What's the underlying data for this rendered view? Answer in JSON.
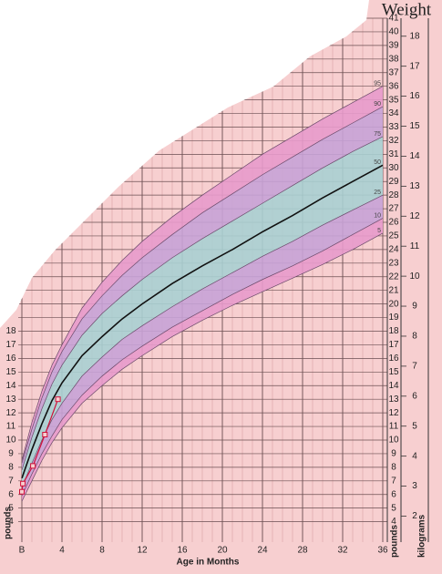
{
  "chart_data": {
    "type": "line",
    "title": "Weight",
    "x_label": "Age in Months",
    "y_label": "pounds",
    "y2_label": "kilograms",
    "xlim": [
      0,
      36
    ],
    "ylim": [
      2.5,
      41
    ],
    "y2lim": [
      1.134,
      18.6
    ],
    "xticks": [
      {
        "value": 0,
        "label": "B"
      },
      4,
      8,
      12,
      16,
      20,
      24,
      28,
      32,
      36
    ],
    "xgrid": [
      0,
      1,
      2,
      3,
      4,
      5,
      6,
      7,
      8,
      9,
      10,
      11,
      12,
      13,
      14,
      15,
      16,
      17,
      18,
      19,
      20,
      21,
      22,
      23,
      24,
      25,
      26,
      27,
      28,
      29,
      30,
      31,
      32,
      33,
      34,
      35,
      36
    ],
    "yticks": [
      4,
      5,
      6,
      7,
      8,
      9,
      10,
      11,
      12,
      13,
      14,
      15,
      16,
      17,
      18,
      19,
      20,
      21,
      22,
      23,
      24,
      25,
      26,
      27,
      28,
      29,
      30,
      31,
      32,
      33,
      34,
      35,
      36,
      37,
      38,
      39,
      40,
      41
    ],
    "yticks_left": [
      4,
      5,
      6,
      7,
      8,
      9,
      10,
      11,
      12,
      13,
      14,
      15,
      16,
      17,
      18
    ],
    "y2ticks": [
      2,
      3,
      4,
      5,
      6,
      7,
      8,
      9,
      10,
      11,
      12,
      13,
      14,
      15,
      16,
      17,
      18
    ],
    "grid": true,
    "x": [
      0,
      1,
      2,
      3,
      4,
      6,
      8,
      10,
      12,
      15,
      18,
      21,
      24,
      27,
      30,
      33,
      36
    ],
    "series": [
      {
        "name": "5",
        "color": "#6a4a6a",
        "values": [
          5.5,
          7.0,
          8.5,
          9.8,
          10.9,
          12.7,
          14.0,
          15.2,
          16.2,
          17.6,
          18.8,
          19.9,
          20.9,
          21.9,
          22.9,
          24.0,
          25.2
        ]
      },
      {
        "name": "10",
        "color": "#6a4a6a",
        "values": [
          5.9,
          7.5,
          9.0,
          10.3,
          11.5,
          13.3,
          14.7,
          15.9,
          16.9,
          18.3,
          19.5,
          20.7,
          21.8,
          22.8,
          23.9,
          25.1,
          26.3
        ]
      },
      {
        "name": "25",
        "color": "#6a4a6a",
        "values": [
          6.5,
          8.3,
          10.0,
          11.5,
          12.7,
          14.7,
          16.1,
          17.4,
          18.4,
          19.8,
          21.1,
          22.3,
          23.5,
          24.6,
          25.8,
          26.9,
          28.0
        ]
      },
      {
        "name": "50",
        "color": "#111111",
        "values": [
          7.2,
          9.3,
          11.2,
          12.9,
          14.2,
          16.2,
          17.6,
          18.9,
          20.0,
          21.5,
          22.8,
          24.0,
          25.3,
          26.5,
          27.8,
          29.0,
          30.2
        ]
      },
      {
        "name": "75",
        "color": "#6a4a6a",
        "values": [
          7.8,
          10.2,
          12.3,
          14.1,
          15.5,
          17.7,
          19.3,
          20.6,
          21.8,
          23.4,
          24.8,
          26.1,
          27.4,
          28.7,
          30.0,
          31.2,
          32.3
        ]
      },
      {
        "name": "90",
        "color": "#6a4a6a",
        "values": [
          8.3,
          10.8,
          13.1,
          15.0,
          16.5,
          18.9,
          20.6,
          22.1,
          23.4,
          25.1,
          26.7,
          28.1,
          29.5,
          30.8,
          32.1,
          33.3,
          34.5
        ]
      },
      {
        "name": "95",
        "color": "#6a4a6a",
        "values": [
          8.5,
          11.3,
          13.6,
          15.5,
          17.0,
          19.7,
          21.6,
          23.2,
          24.6,
          26.4,
          28.0,
          29.5,
          31.0,
          32.3,
          33.6,
          34.8,
          36.0
        ]
      }
    ],
    "band_colors": [
      "#e79acb",
      "#c7a2d6",
      "#a9cfd2",
      "#a9cfd2",
      "#c7a2d6",
      "#e79acb"
    ],
    "points": {
      "color": "#d0103a",
      "x": [
        0,
        0.1,
        1.1,
        2.3,
        3.6
      ],
      "values": [
        6.2,
        6.8,
        8.1,
        10.4,
        13.0
      ]
    }
  }
}
